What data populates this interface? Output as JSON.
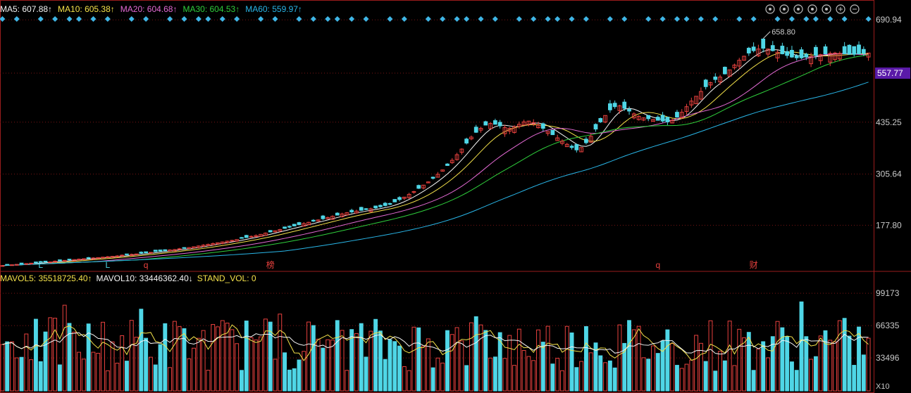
{
  "colors": {
    "background": "#000000",
    "up": "#e8413e",
    "down": "#4fd6e6",
    "grid": "#7a1414",
    "frame": "#9a1c1c",
    "axis_text": "#c9c9c9",
    "ma5": "#f5f5f5",
    "ma10": "#f4e24a",
    "ma20": "#e36ad4",
    "ma30": "#2fcf3c",
    "ma60": "#29b6e8",
    "signal": "#3fb6e6",
    "current_price_bg": "#5a1aa8"
  },
  "toolbar": {
    "icons": [
      "settings-icon",
      "pen-icon",
      "eye-icon",
      "lock-icon",
      "grab-icon",
      "zoom-in-icon",
      "zoom-out-icon"
    ]
  },
  "indicators": {
    "ma": [
      {
        "label": "MA5: 607.88",
        "arrow": "↑",
        "color": "#f5f5f5"
      },
      {
        "label": "MA10: 605.38",
        "arrow": "↑",
        "color": "#f4e24a"
      },
      {
        "label": "MA20: 604.68",
        "arrow": "↑",
        "color": "#e36ad4"
      },
      {
        "label": "MA30: 604.53",
        "arrow": "↑",
        "color": "#2fcf3c"
      },
      {
        "label": "MA60: 559.97",
        "arrow": "↑",
        "color": "#29b6e8"
      }
    ],
    "vol": [
      {
        "label": "MAVOL5: 35518725.40",
        "arrow": "↑",
        "color": "#f4e24a"
      },
      {
        "label": "MAVOL10: 33446362.40",
        "arrow": "↓",
        "color": "#f5f5f5"
      },
      {
        "label": "STAND_VOL: 0",
        "arrow": "",
        "color": "#f4e24a"
      }
    ]
  },
  "chart_data": [
    {
      "type": "candlestick",
      "y_axis_ticks": [
        "690.94",
        "557.77",
        "435.25",
        "305.64",
        "177.80"
      ],
      "ylim": [
        66,
        730
      ],
      "current_price": "557.77",
      "max_annotation": "658.80",
      "markers": [
        {
          "index": 8,
          "text": "L"
        },
        {
          "index": 22,
          "text": "L"
        },
        {
          "index": 30,
          "text": "q"
        },
        {
          "index": 56,
          "text": "榜"
        },
        {
          "index": 137,
          "text": "q"
        },
        {
          "index": 157,
          "text": "财"
        }
      ],
      "close": [
        77,
        78,
        79,
        80,
        81,
        82,
        83,
        84,
        85,
        86,
        86,
        88,
        89,
        90,
        91,
        92,
        93,
        94,
        95,
        96,
        97,
        98,
        99,
        100,
        101,
        103,
        104,
        105,
        106,
        108,
        109,
        110,
        112,
        113,
        114,
        116,
        117,
        119,
        120,
        122,
        124,
        126,
        128,
        130,
        132,
        134,
        136,
        138,
        140,
        142,
        145,
        147,
        150,
        152,
        155,
        158,
        161,
        164,
        167,
        170,
        173,
        176,
        179,
        182,
        185,
        188,
        191,
        194,
        197,
        200,
        203,
        206,
        209,
        211,
        213,
        215,
        217,
        219,
        221,
        224,
        227,
        230,
        236,
        242,
        248,
        255,
        262,
        270,
        278,
        286,
        295,
        305,
        316,
        327,
        340,
        354,
        368,
        383,
        398,
        410,
        420,
        428,
        432,
        430,
        426,
        422,
        420,
        424,
        430,
        436,
        438,
        434,
        428,
        420,
        412,
        404,
        396,
        388,
        380,
        372,
        366,
        372,
        384,
        400,
        418,
        436,
        452,
        466,
        474,
        476,
        470,
        463,
        456,
        450,
        446,
        444,
        442,
        440,
        438,
        436,
        440,
        448,
        460,
        474,
        488,
        500,
        512,
        524,
        534,
        542,
        548,
        556,
        566,
        578,
        590,
        600,
        608,
        614,
        618,
        620,
        618,
        614,
        610,
        606,
        602,
        598,
        596,
        596,
        598,
        600,
        602,
        604,
        606,
        607,
        608,
        607,
        606,
        605,
        605,
        606,
        607,
        608
      ],
      "ma60": [],
      "volume_ylim": [
        0,
        120000
      ],
      "volume_ticks": [
        "99173",
        "66335",
        "33496"
      ],
      "volume_unit": "X10"
    }
  ]
}
